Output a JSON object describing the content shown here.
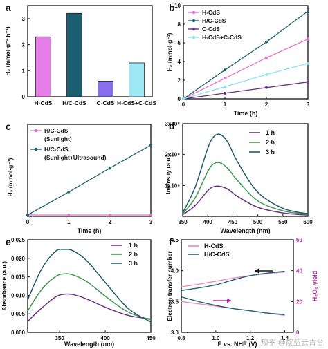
{
  "watermark": "知乎 @靛蓝云青台",
  "chart_data": [
    {
      "panel": "a",
      "type": "bar",
      "categories": [
        "H-CdS",
        "H/C-CdS",
        "C-CdS",
        "H-CdS+C-CdS"
      ],
      "values": [
        2.3,
        3.2,
        0.6,
        1.3
      ],
      "colors": [
        "#e47de7",
        "#1b5e70",
        "#8a6ef0",
        "#9ee8f5"
      ],
      "ylabel": "H₂ (mmol·g⁻¹·h⁻¹)",
      "xlabel": "",
      "ylim": [
        0,
        3.5
      ],
      "yticks": [
        0,
        1,
        2,
        3
      ]
    },
    {
      "panel": "b",
      "type": "line",
      "x": [
        0,
        1,
        2,
        3
      ],
      "series": [
        {
          "name": "H-CdS",
          "values": [
            0,
            2.2,
            4.4,
            6.4
          ],
          "color": "#e86fd0",
          "marker": "circle"
        },
        {
          "name": "H/C-CdS",
          "values": [
            0,
            3.1,
            6.1,
            9.4
          ],
          "color": "#1f6470",
          "marker": "circle"
        },
        {
          "name": "C-CdS",
          "values": [
            0,
            0.6,
            1.2,
            1.8
          ],
          "color": "#6f2f84",
          "marker": "circle"
        },
        {
          "name": "H-CdS+C-CdS",
          "values": [
            0,
            1.3,
            2.6,
            3.8
          ],
          "color": "#86e3f2",
          "marker": "circle"
        }
      ],
      "xlabel": "Time (h)",
      "ylabel": "H₂ (mmol·g⁻¹)",
      "xlim": [
        0,
        3
      ],
      "ylim": [
        0,
        10
      ],
      "xticks": [
        0,
        1,
        2,
        3
      ],
      "yticks": [
        0,
        2,
        4,
        6,
        8,
        10
      ]
    },
    {
      "panel": "c",
      "type": "line",
      "x": [
        0,
        1,
        2,
        3
      ],
      "series": [
        {
          "name": "H/C-CdS (Sunlight)",
          "values": [
            0,
            0,
            0,
            0
          ],
          "color": "#e86fd0",
          "marker": "circle"
        },
        {
          "name": "H/C-CdS (Sunlight+Ultrasound)",
          "values": [
            0,
            0.27,
            0.55,
            0.82
          ],
          "color": "#1f6470",
          "marker": "circle"
        }
      ],
      "legend_lines": [
        [
          "H/C-CdS",
          "(Sunlight)"
        ],
        [
          "H/C-CdS",
          "(Sunlight+Ultrasound)"
        ]
      ],
      "xlabel": "Time (h)",
      "ylabel": "H₂ (mmol·g⁻¹)",
      "xlim": [
        0,
        3
      ],
      "ylim": [
        0,
        1.0
      ],
      "xticks": [
        0,
        1,
        2,
        3
      ],
      "yticks": []
    },
    {
      "panel": "d",
      "type": "line",
      "x": [
        350,
        375,
        400,
        412,
        425,
        440,
        460,
        500,
        550,
        600
      ],
      "series": [
        {
          "name": "1 h",
          "values": [
            5000000.0,
            35000000.0,
            83000000.0,
            96000000.0,
            97000000.0,
            88000000.0,
            64000000.0,
            29000000.0,
            11000000.0,
            4000000.0
          ],
          "color": "#6f2f84"
        },
        {
          "name": "2 h",
          "values": [
            8000000.0,
            60000000.0,
            145000000.0,
            170000000.0,
            173000000.0,
            155000000.0,
            115000000.0,
            50000000.0,
            18000000.0,
            6000000.0
          ],
          "color": "#3e9a4b"
        },
        {
          "name": "3 h",
          "values": [
            11000000.0,
            95000000.0,
            220000000.0,
            258000000.0,
            265000000.0,
            240000000.0,
            175000000.0,
            78000000.0,
            26000000.0,
            8000000.0
          ],
          "color": "#1e5c68"
        }
      ],
      "xlabel": "Wavelength (nm)",
      "ylabel": "Intensity (a.u.)",
      "xlim": [
        350,
        600
      ],
      "ylim": [
        0,
        300000000.0
      ],
      "xticks": [
        350,
        400,
        450,
        500,
        550,
        600
      ],
      "yticks": [
        {
          "v": 100000000.0,
          "t": "1x10⁸"
        },
        {
          "v": 200000000.0,
          "t": "2x10⁸"
        },
        {
          "v": 300000000.0,
          "t": "3x10⁸"
        }
      ]
    },
    {
      "panel": "e",
      "type": "line",
      "x": [
        315,
        330,
        345,
        355,
        365,
        380,
        400,
        425,
        450
      ],
      "series": [
        {
          "name": "1 h",
          "values": [
            0.003,
            0.0065,
            0.0095,
            0.0103,
            0.0102,
            0.009,
            0.0068,
            0.0046,
            0.0036
          ],
          "color": "#6f2f84"
        },
        {
          "name": "2 h",
          "values": [
            0.0058,
            0.0115,
            0.015,
            0.0158,
            0.0155,
            0.0137,
            0.0098,
            0.0055,
            0.0034
          ],
          "color": "#3e9a4b"
        },
        {
          "name": "3 h",
          "values": [
            0.0088,
            0.017,
            0.0218,
            0.0224,
            0.022,
            0.0193,
            0.0135,
            0.0065,
            0.0028
          ],
          "color": "#1e5c68"
        }
      ],
      "xlabel": "Wavelength (nm)",
      "ylabel": "Absorbance (a.u.)",
      "xlim": [
        315,
        450
      ],
      "ylim": [
        0,
        0.025
      ],
      "xticks": [
        350,
        400,
        450
      ],
      "yticks": [
        0.0,
        0.005,
        0.01,
        0.015,
        0.02,
        0.025
      ]
    },
    {
      "panel": "f",
      "type": "line",
      "x": [
        0.8,
        0.9,
        1.0,
        1.1,
        1.2,
        1.3,
        1.4
      ],
      "series": [
        {
          "name": "H-CdS",
          "axis": "left",
          "values": [
            3.74,
            3.78,
            3.83,
            3.88,
            3.92,
            3.95,
            3.98
          ],
          "color": "#e889c9"
        },
        {
          "name": "H/C-CdS",
          "axis": "left",
          "values": [
            3.68,
            3.72,
            3.77,
            3.85,
            3.92,
            3.96,
            3.99
          ],
          "color": "#1f6470"
        },
        {
          "name": "H-CdS",
          "axis": "right",
          "values": [
            20,
            18.5,
            17,
            15.5,
            14,
            12.5,
            11
          ],
          "color": "#e889c9"
        },
        {
          "name": "H/C-CdS",
          "axis": "right",
          "values": [
            23,
            20,
            17.5,
            15.5,
            14,
            12.5,
            11.5
          ],
          "color": "#1f6470"
        }
      ],
      "xlabel": "E vs. NHE (V)",
      "ylabel": "Electron transfer number",
      "y2label": "H₂O₂ yield",
      "xlim": [
        0.8,
        1.45
      ],
      "ylim": [
        3.0,
        4.5
      ],
      "y2lim": [
        0,
        60
      ],
      "xticks": [
        0.8,
        1.0,
        1.2,
        1.4
      ],
      "yticks": [
        3.0,
        3.5,
        4.0,
        4.5
      ],
      "y2ticks": [
        0,
        20,
        40,
        60
      ],
      "y2color": "#b02ba0"
    }
  ]
}
